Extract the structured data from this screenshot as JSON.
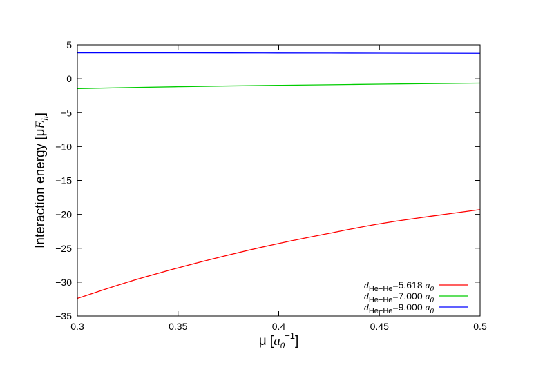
{
  "chart_data": {
    "type": "line",
    "xlabel": {
      "pre": "μ [",
      "var": "a",
      "var_sub": "0",
      "sup": "−1",
      "post": "]"
    },
    "ylabel": {
      "pre": "Interaction energy [μ",
      "var": "E",
      "var_sub": "h",
      "post": "]"
    },
    "xlim": [
      0.3,
      0.5
    ],
    "ylim": [
      -35,
      5
    ],
    "xticks": [
      0.3,
      0.35,
      0.4,
      0.45,
      0.5
    ],
    "xtick_labels": [
      "0.3",
      "0.35",
      "0.4",
      "0.45",
      "0.5"
    ],
    "yticks": [
      5,
      0,
      -5,
      -10,
      -15,
      -20,
      -25,
      -30,
      -35
    ],
    "ytick_labels": [
      "5",
      "0",
      "−5",
      "−10",
      "−15",
      "−20",
      "−25",
      "−30",
      "−35"
    ],
    "grid": false,
    "legend_position": "bottom-right",
    "series": [
      {
        "label_var": "d",
        "label_sub": "He−He",
        "label_value": "=5.618",
        "label_unit_var": "a",
        "label_unit_sub": "0",
        "color": "#ff0000",
        "x": [
          0.3,
          0.325,
          0.35,
          0.375,
          0.4,
          0.425,
          0.45,
          0.475,
          0.5
        ],
        "y": [
          -32.4,
          -30.0,
          -27.9,
          -26.0,
          -24.3,
          -22.8,
          -21.4,
          -20.3,
          -19.3
        ]
      },
      {
        "label_var": "d",
        "label_sub": "He−He",
        "label_value": "=7.000",
        "label_unit_var": "a",
        "label_unit_sub": "0",
        "color": "#00cc00",
        "x": [
          0.3,
          0.325,
          0.35,
          0.375,
          0.4,
          0.425,
          0.45,
          0.475,
          0.5
        ],
        "y": [
          -1.45,
          -1.3,
          -1.17,
          -1.06,
          -0.97,
          -0.89,
          -0.8,
          -0.72,
          -0.65
        ]
      },
      {
        "label_var": "d",
        "label_sub": "He−He",
        "label_value": "=9.000",
        "label_unit_var": "a",
        "label_unit_sub": "0",
        "color": "#0000ff",
        "x": [
          0.3,
          0.35,
          0.4,
          0.45,
          0.5
        ],
        "y": [
          3.82,
          3.82,
          3.8,
          3.78,
          3.75
        ]
      }
    ]
  }
}
